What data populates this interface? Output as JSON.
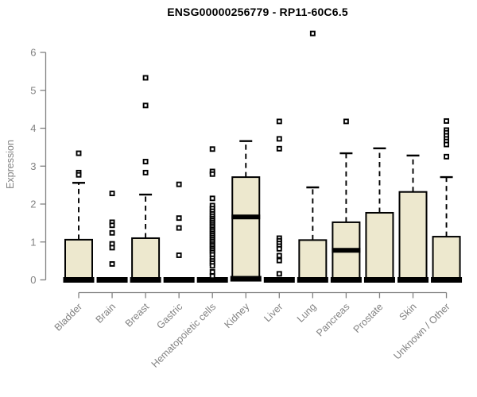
{
  "title": {
    "text": "ENSG00000256779 - RP11-60C6.5"
  },
  "chart_style": {
    "background": "#ffffff",
    "box_fill": "#EDE8CE",
    "box_stroke": "#000000",
    "median_color": "#000000",
    "axis_color": "#828282",
    "tick_label_color": "#828282",
    "title_color": "#000000"
  },
  "chart_data": {
    "type": "boxplot",
    "title": "ENSG00000256779 - RP11-60C6.5",
    "xlabel": "",
    "ylabel": "Expression",
    "ylim": [
      0,
      6.6
    ],
    "yticks": [
      0,
      1,
      2,
      3,
      4,
      5,
      6
    ],
    "grid": false,
    "legend": "none",
    "categories": [
      "Bladder",
      "Brain",
      "Breast",
      "Gastric",
      "Hematopoietic cells",
      "Kidney",
      "Liver",
      "Lung",
      "Pancreas",
      "Prostate",
      "Skin",
      "Unknown / Other"
    ],
    "boxes": [
      {
        "label": "Bladder",
        "q1": 0,
        "median": 0,
        "q3": 1.06,
        "whisker_low": 0,
        "whisker_high": 2.56,
        "outliers": [
          3.34,
          2.83,
          2.77
        ]
      },
      {
        "label": "Brain",
        "q1": 0,
        "median": 0,
        "q3": 0,
        "whisker_low": 0,
        "whisker_high": 0,
        "outliers": [
          2.28,
          1.52,
          1.44,
          1.24,
          0.95,
          0.85,
          0.42
        ]
      },
      {
        "label": "Breast",
        "q1": 0,
        "median": 0,
        "q3": 1.1,
        "whisker_low": 0,
        "whisker_high": 2.25,
        "outliers": [
          5.33,
          4.6,
          3.12,
          2.83
        ]
      },
      {
        "label": "Gastric",
        "q1": 0,
        "median": 0,
        "q3": 0,
        "whisker_low": 0,
        "whisker_high": 0,
        "outliers": [
          2.52,
          1.63,
          1.37,
          0.65
        ]
      },
      {
        "label": "Hematopoietic cells",
        "q1": 0,
        "median": 0,
        "q3": 0,
        "whisker_low": 0,
        "whisker_high": 0,
        "outliers": [
          3.45,
          2.86,
          2.79,
          2.15,
          1.96,
          1.88,
          1.81,
          1.74,
          1.68,
          1.62,
          1.57,
          1.52,
          1.47,
          1.42,
          1.37,
          1.32,
          1.27,
          1.22,
          1.17,
          1.12,
          1.07,
          1.02,
          0.97,
          0.92,
          0.87,
          0.82,
          0.77,
          0.72,
          0.66,
          0.57,
          0.5,
          0.44,
          0.37,
          0.21,
          0.1
        ]
      },
      {
        "label": "Kidney",
        "q1": 0.03,
        "median": 1.66,
        "q3": 2.71,
        "whisker_low": 0.03,
        "whisker_high": 3.66,
        "outliers": []
      },
      {
        "label": "Liver",
        "q1": 0,
        "median": 0,
        "q3": 0,
        "whisker_low": 0,
        "whisker_high": 0,
        "outliers": [
          4.18,
          3.72,
          3.46,
          1.1,
          1.03,
          0.96,
          0.89,
          0.82,
          0.64,
          0.51,
          0.16
        ]
      },
      {
        "label": "Lung",
        "q1": 0,
        "median": 0,
        "q3": 1.05,
        "whisker_low": 0,
        "whisker_high": 2.44,
        "outliers": [
          6.5
        ]
      },
      {
        "label": "Pancreas",
        "q1": 0,
        "median": 0.78,
        "q3": 1.52,
        "whisker_low": 0,
        "whisker_high": 3.34,
        "outliers": [
          4.18
        ]
      },
      {
        "label": "Prostate",
        "q1": 0,
        "median": 0,
        "q3": 1.77,
        "whisker_low": 0,
        "whisker_high": 3.47,
        "outliers": []
      },
      {
        "label": "Skin",
        "q1": 0,
        "median": 0,
        "q3": 2.32,
        "whisker_low": 0,
        "whisker_high": 3.28,
        "outliers": []
      },
      {
        "label": "Unknown / Other",
        "q1": 0,
        "median": 0,
        "q3": 1.14,
        "whisker_low": 0,
        "whisker_high": 2.71,
        "outliers": [
          4.19,
          3.95,
          3.88,
          3.8,
          3.72,
          3.65,
          3.57,
          3.25
        ]
      }
    ]
  }
}
